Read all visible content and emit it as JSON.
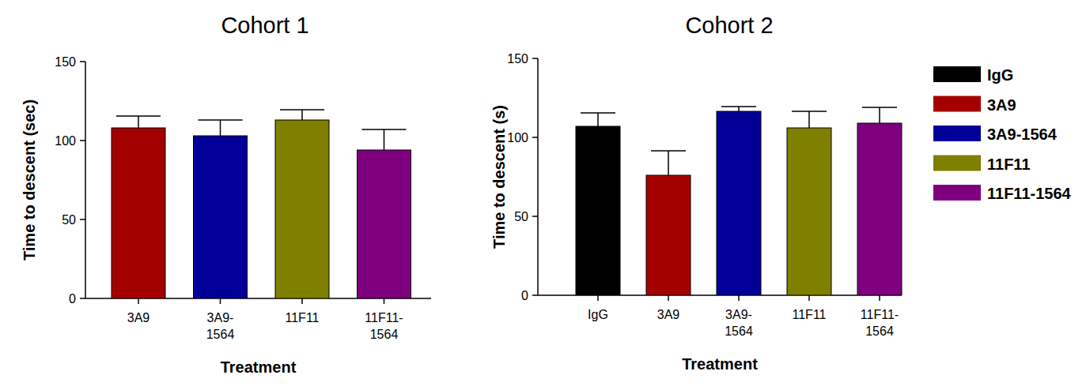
{
  "chart_data": [
    {
      "type": "bar",
      "title": "Cohort 1",
      "x_label": "Treatment",
      "y_label": "Time to descent (sec)",
      "categories": [
        "3A9",
        "3A9-1564",
        "11F11",
        "11F11-1564"
      ],
      "values": [
        108,
        103,
        113,
        94
      ],
      "errors": [
        7.5,
        10,
        6.5,
        13
      ],
      "colors": [
        "#a50000",
        "#000099",
        "#7f7f00",
        "#7f007f"
      ],
      "ylim": [
        0,
        150
      ],
      "yticks": [
        0,
        50,
        100,
        150
      ]
    },
    {
      "type": "bar",
      "title": "Cohort 2",
      "x_label": "Treatment",
      "y_label": "Time to descent (s)",
      "categories": [
        "IgG",
        "3A9",
        "3A9-1564",
        "11F11",
        "11F11-1564"
      ],
      "values": [
        107,
        76,
        116.5,
        106,
        109
      ],
      "errors": [
        8.5,
        15.5,
        3,
        10.5,
        10
      ],
      "colors": [
        "#000000",
        "#a50000",
        "#000099",
        "#7f7f00",
        "#7f007f"
      ],
      "ylim": [
        0,
        150
      ],
      "yticks": [
        0,
        50,
        100,
        150
      ],
      "legend": "right"
    }
  ]
}
